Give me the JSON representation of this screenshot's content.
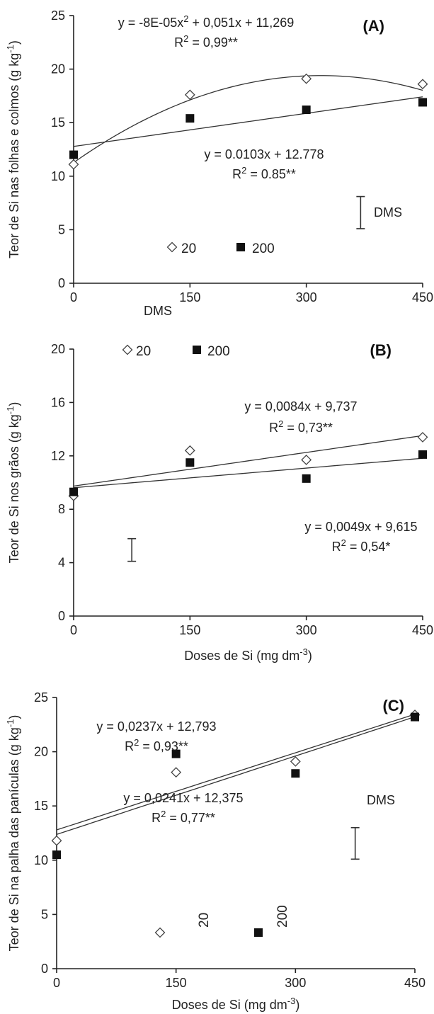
{
  "chart_data": [
    {
      "type": "scatter",
      "panel": "(A)",
      "ylabel": "Teor de Si nas folhas e colmos (g kg-1)",
      "xlabel": "",
      "x_ticks": [
        "0",
        "150",
        "300",
        "450"
      ],
      "y_ticks": [
        "0",
        "5",
        "10",
        "15",
        "20",
        "25"
      ],
      "xlim": [
        0,
        450
      ],
      "ylim": [
        0,
        25
      ],
      "grid": false,
      "series": [
        {
          "name": "20",
          "marker": "diamond-open",
          "x": [
            0,
            150,
            300,
            450
          ],
          "y": [
            11.1,
            17.6,
            19.1,
            18.6
          ],
          "fit": {
            "kind": "quadratic",
            "a": -8e-05,
            "b": 0.051,
            "c": 11.269
          },
          "equation": "y = -8E-05x² + 0,051x + 11,269",
          "r2": "R² = 0,99**"
        },
        {
          "name": "200",
          "marker": "square-filled",
          "x": [
            0,
            150,
            300,
            450
          ],
          "y": [
            12.0,
            15.4,
            16.2,
            16.9
          ],
          "fit": {
            "kind": "linear",
            "a": 0.0103,
            "b": 12.778
          },
          "equation": "y = 0.0103x + 12.778",
          "r2": "R² = 0.85**"
        }
      ],
      "dms": {
        "label": "DMS",
        "x": 370,
        "y_low": 5.1,
        "y_high": 8.1
      }
    },
    {
      "type": "scatter",
      "panel": "(B)",
      "ylabel": "Teor de Si nos grãos (g kg-1)",
      "xlabel": "Doses de Si (mg dm-3)",
      "x_ticks": [
        "0",
        "150",
        "300",
        "450"
      ],
      "y_ticks": [
        "0",
        "4",
        "8",
        "12",
        "16",
        "20"
      ],
      "xlim": [
        0,
        450
      ],
      "ylim": [
        0,
        20
      ],
      "grid": false,
      "series": [
        {
          "name": "20",
          "marker": "diamond-open",
          "x": [
            0,
            150,
            300,
            450
          ],
          "y": [
            9.0,
            12.4,
            11.7,
            13.4
          ],
          "fit": {
            "kind": "linear",
            "a": 0.0084,
            "b": 9.737
          },
          "equation": "y = 0,0084x + 9,737",
          "r2": "R² = 0,73**"
        },
        {
          "name": "200",
          "marker": "square-filled",
          "x": [
            0,
            150,
            300,
            450
          ],
          "y": [
            9.3,
            11.5,
            10.3,
            12.1
          ],
          "fit": {
            "kind": "linear",
            "a": 0.0049,
            "b": 9.615
          },
          "equation": "y = 0,0049x + 9,615",
          "r2": "R² = 0,54*"
        }
      ],
      "dms": {
        "label": "DMS",
        "x": 75,
        "y_low": 4.1,
        "y_high": 5.8
      }
    },
    {
      "type": "scatter",
      "panel": "(C)",
      "ylabel": "Teor de Si na palha das panículas (g kg-1)",
      "xlabel": "Doses de Si (mg dm-3)",
      "x_ticks": [
        "0",
        "150",
        "300",
        "450"
      ],
      "y_ticks": [
        "0",
        "5",
        "10",
        "15",
        "20",
        "25"
      ],
      "xlim": [
        0,
        450
      ],
      "ylim": [
        0,
        25
      ],
      "grid": false,
      "series": [
        {
          "name": "20",
          "marker": "diamond-open",
          "x": [
            0,
            150,
            300,
            450
          ],
          "y": [
            11.8,
            18.1,
            19.1,
            23.4
          ],
          "fit": {
            "kind": "linear",
            "a": 0.0237,
            "b": 12.793
          },
          "equation": "y = 0,0237x + 12,793",
          "r2": "R² = 0,93**"
        },
        {
          "name": "200",
          "marker": "square-filled",
          "x": [
            0,
            150,
            300,
            450
          ],
          "y": [
            10.5,
            19.8,
            18.0,
            23.2
          ],
          "fit": {
            "kind": "linear",
            "a": 0.0241,
            "b": 12.375
          },
          "equation": "y = 0,0241x + 12,375",
          "r2": "R² = 0,77**"
        }
      ],
      "dms": {
        "label": "DMS",
        "x": 375,
        "y_low": 10.1,
        "y_high": 13.0
      }
    }
  ]
}
